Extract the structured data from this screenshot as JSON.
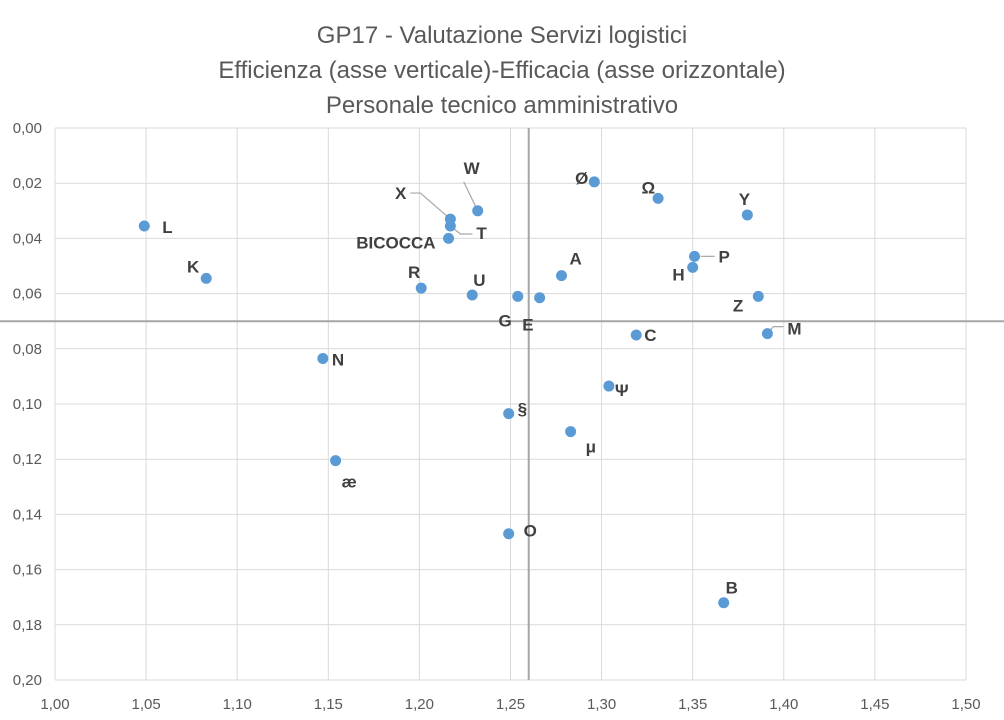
{
  "chart_data": {
    "type": "scatter",
    "title_lines": [
      "GP17 - Valutazione Servizi logistici",
      "Efficienza (asse verticale)-Efficacia (asse orizzontale)",
      "Personale tecnico amministrativo"
    ],
    "xlabel": "",
    "ylabel": "",
    "xlim": [
      1.0,
      1.5
    ],
    "ylim": [
      0.0,
      0.2
    ],
    "y_inverted": true,
    "grid": true,
    "x_ticks": [
      "1,00",
      "1,05",
      "1,10",
      "1,15",
      "1,20",
      "1,25",
      "1,30",
      "1,35",
      "1,40",
      "1,45",
      "1,50"
    ],
    "y_ticks": [
      "0,00",
      "0,02",
      "0,04",
      "0,06",
      "0,08",
      "0,10",
      "0,12",
      "0,14",
      "0,16",
      "0,18",
      "0,20"
    ],
    "reference_lines": {
      "x": 1.26,
      "y": 0.07
    },
    "marker_color": "#5B9BD5",
    "points": [
      {
        "label": "L",
        "x": 1.049,
        "y": 0.0355
      },
      {
        "label": "K",
        "x": 1.083,
        "y": 0.0545
      },
      {
        "label": "N",
        "x": 1.147,
        "y": 0.0835
      },
      {
        "label": "æ",
        "x": 1.154,
        "y": 0.1205
      },
      {
        "label": "R",
        "x": 1.201,
        "y": 0.058
      },
      {
        "label": "X",
        "x": 1.217,
        "y": 0.033
      },
      {
        "label": "T",
        "x": 1.217,
        "y": 0.0355
      },
      {
        "label": "BICOCCA",
        "x": 1.216,
        "y": 0.04
      },
      {
        "label": "W",
        "x": 1.232,
        "y": 0.03
      },
      {
        "label": "U",
        "x": 1.229,
        "y": 0.0605
      },
      {
        "label": "G",
        "x": 1.254,
        "y": 0.061
      },
      {
        "label": "E",
        "x": 1.266,
        "y": 0.0615
      },
      {
        "label": "§",
        "x": 1.249,
        "y": 0.1035
      },
      {
        "label": "O",
        "x": 1.249,
        "y": 0.147
      },
      {
        "label": "A",
        "x": 1.278,
        "y": 0.0535
      },
      {
        "label": "μ",
        "x": 1.283,
        "y": 0.11
      },
      {
        "label": "Ø",
        "x": 1.296,
        "y": 0.0195
      },
      {
        "label": "Ψ",
        "x": 1.304,
        "y": 0.0935
      },
      {
        "label": "C",
        "x": 1.319,
        "y": 0.075
      },
      {
        "label": "Ω",
        "x": 1.331,
        "y": 0.0255
      },
      {
        "label": "P",
        "x": 1.351,
        "y": 0.0465
      },
      {
        "label": "H",
        "x": 1.35,
        "y": 0.0505
      },
      {
        "label": "B",
        "x": 1.367,
        "y": 0.172
      },
      {
        "label": "Y",
        "x": 1.38,
        "y": 0.0315
      },
      {
        "label": "Z",
        "x": 1.386,
        "y": 0.061
      },
      {
        "label": "M",
        "x": 1.391,
        "y": 0.0745
      }
    ]
  }
}
